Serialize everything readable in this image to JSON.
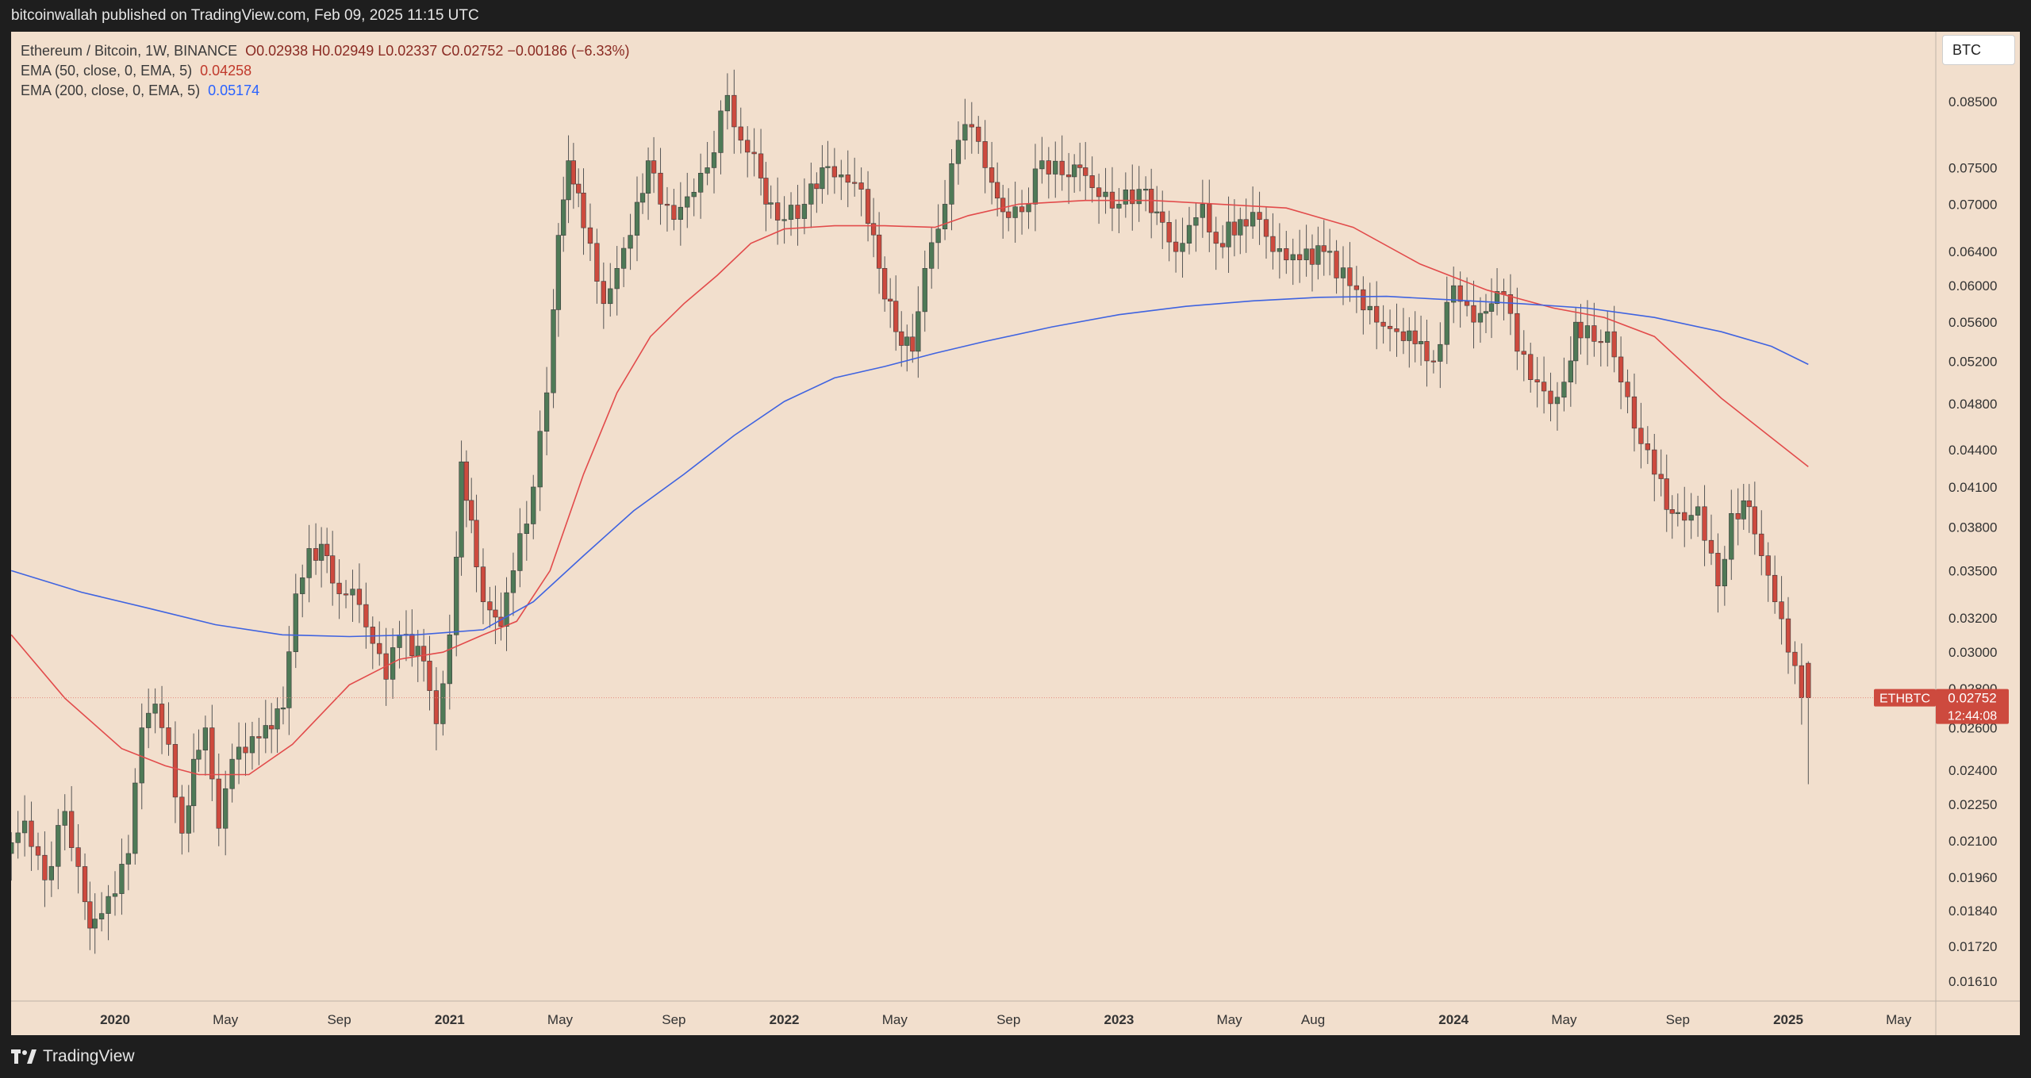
{
  "header": {
    "published": "bitcoinwallah published on TradingView.com, Feb 09, 2025 11:15 UTC"
  },
  "footer": {
    "brand": "TradingView"
  },
  "legend": {
    "line1": "Ethereum / Bitcoin, 1W, BINANCE",
    "ohlc": "O0.02938  H0.02949  L0.02337  C0.02752  −0.00186 (−6.33%)",
    "ema50_label": "EMA (50, close, 0, EMA, 5)",
    "ema50_value": "0.04258",
    "ema200_label": "EMA (200, close, 0, EMA, 5)",
    "ema200_value": "0.05174"
  },
  "currency": "BTC",
  "price_tag": {
    "symbol": "ETHBTC",
    "price": "0.02752",
    "countdown": "12:44:08"
  },
  "colors": {
    "up": "#4f7a57",
    "down": "#cd4a3e",
    "ema50": "#e24b4b",
    "ema200": "#3f63e0",
    "background": "#f2dfcd"
  },
  "chart_data": {
    "type": "candlestick",
    "symbol": "ETHBTC",
    "interval": "1W",
    "scale": "log",
    "y_ticks": [
      "0.01610",
      "0.01720",
      "0.01840",
      "0.01960",
      "0.02100",
      "0.02250",
      "0.02400",
      "0.02600",
      "0.02800",
      "0.03000",
      "0.03200",
      "0.03500",
      "0.03800",
      "0.04100",
      "0.04400",
      "0.04800",
      "0.05200",
      "0.05600",
      "0.06000",
      "0.06400",
      "0.07000",
      "0.07500",
      "0.08500"
    ],
    "x_ticks": [
      {
        "label": "2020",
        "t": 2020.0,
        "bold": true
      },
      {
        "label": "May",
        "t": 2020.33,
        "bold": false
      },
      {
        "label": "Sep",
        "t": 2020.67,
        "bold": false
      },
      {
        "label": "2021",
        "t": 2021.0,
        "bold": true
      },
      {
        "label": "May",
        "t": 2021.33,
        "bold": false
      },
      {
        "label": "Sep",
        "t": 2021.67,
        "bold": false
      },
      {
        "label": "2022",
        "t": 2022.0,
        "bold": true
      },
      {
        "label": "May",
        "t": 2022.33,
        "bold": false
      },
      {
        "label": "Sep",
        "t": 2022.67,
        "bold": false
      },
      {
        "label": "2023",
        "t": 2023.0,
        "bold": true
      },
      {
        "label": "May",
        "t": 2023.33,
        "bold": false
      },
      {
        "label": "Aug",
        "t": 2023.58,
        "bold": false
      },
      {
        "label": "2024",
        "t": 2024.0,
        "bold": true
      },
      {
        "label": "May",
        "t": 2024.33,
        "bold": false
      },
      {
        "label": "Sep",
        "t": 2024.67,
        "bold": false
      },
      {
        "label": "2025",
        "t": 2025.0,
        "bold": true
      },
      {
        "label": "May",
        "t": 2025.33,
        "bold": false
      }
    ],
    "closes": [
      [
        2019.69,
        0.0205
      ],
      [
        2019.75,
        0.0218
      ],
      [
        2019.81,
        0.0195
      ],
      [
        2019.87,
        0.0222
      ],
      [
        2019.91,
        0.02
      ],
      [
        2019.94,
        0.0178
      ],
      [
        2019.98,
        0.0183
      ],
      [
        2020.02,
        0.019
      ],
      [
        2020.06,
        0.0205
      ],
      [
        2020.1,
        0.026
      ],
      [
        2020.14,
        0.0272
      ],
      [
        2020.18,
        0.0252
      ],
      [
        2020.22,
        0.0213
      ],
      [
        2020.25,
        0.0245
      ],
      [
        2020.29,
        0.026
      ],
      [
        2020.33,
        0.0215
      ],
      [
        2020.37,
        0.0245
      ],
      [
        2020.41,
        0.0248
      ],
      [
        2020.45,
        0.0255
      ],
      [
        2020.52,
        0.027
      ],
      [
        2020.56,
        0.0335
      ],
      [
        2020.6,
        0.0365
      ],
      [
        2020.65,
        0.036
      ],
      [
        2020.69,
        0.0335
      ],
      [
        2020.73,
        0.0338
      ],
      [
        2020.79,
        0.0305
      ],
      [
        2020.83,
        0.0285
      ],
      [
        2020.87,
        0.031
      ],
      [
        2020.94,
        0.0295
      ],
      [
        2020.98,
        0.0262
      ],
      [
        2021.02,
        0.031
      ],
      [
        2021.05,
        0.043
      ],
      [
        2021.08,
        0.0385
      ],
      [
        2021.12,
        0.033
      ],
      [
        2021.17,
        0.0315
      ],
      [
        2021.21,
        0.035
      ],
      [
        2021.27,
        0.041
      ],
      [
        2021.31,
        0.049
      ],
      [
        2021.34,
        0.066
      ],
      [
        2021.37,
        0.076
      ],
      [
        2021.4,
        0.0715
      ],
      [
        2021.44,
        0.065
      ],
      [
        2021.48,
        0.058
      ],
      [
        2021.52,
        0.062
      ],
      [
        2021.56,
        0.066
      ],
      [
        2021.61,
        0.076
      ],
      [
        2021.65,
        0.07
      ],
      [
        2021.69,
        0.068
      ],
      [
        2021.73,
        0.071
      ],
      [
        2021.79,
        0.075
      ],
      [
        2021.85,
        0.086
      ],
      [
        2021.89,
        0.079
      ],
      [
        2021.93,
        0.077
      ],
      [
        2021.96,
        0.07
      ],
      [
        2022.02,
        0.068
      ],
      [
        2022.08,
        0.07
      ],
      [
        2022.13,
        0.075
      ],
      [
        2022.19,
        0.074
      ],
      [
        2022.25,
        0.072
      ],
      [
        2022.3,
        0.062
      ],
      [
        2022.35,
        0.055
      ],
      [
        2022.4,
        0.053
      ],
      [
        2022.44,
        0.062
      ],
      [
        2022.5,
        0.07
      ],
      [
        2022.54,
        0.079
      ],
      [
        2022.58,
        0.081
      ],
      [
        2022.62,
        0.075
      ],
      [
        2022.67,
        0.069
      ],
      [
        2022.73,
        0.069
      ],
      [
        2022.79,
        0.076
      ],
      [
        2022.85,
        0.074
      ],
      [
        2022.9,
        0.075
      ],
      [
        2022.96,
        0.071
      ],
      [
        2023.02,
        0.07
      ],
      [
        2023.08,
        0.072
      ],
      [
        2023.13,
        0.069
      ],
      [
        2023.19,
        0.064
      ],
      [
        2023.27,
        0.07
      ],
      [
        2023.31,
        0.065
      ],
      [
        2023.38,
        0.068
      ],
      [
        2023.44,
        0.068
      ],
      [
        2023.48,
        0.064
      ],
      [
        2023.56,
        0.063
      ],
      [
        2023.63,
        0.064
      ],
      [
        2023.71,
        0.06
      ],
      [
        2023.79,
        0.056
      ],
      [
        2023.85,
        0.055
      ],
      [
        2023.92,
        0.054
      ],
      [
        2023.96,
        0.052
      ],
      [
        2024.02,
        0.06
      ],
      [
        2024.08,
        0.056
      ],
      [
        2024.13,
        0.058
      ],
      [
        2024.17,
        0.059
      ],
      [
        2024.21,
        0.053
      ],
      [
        2024.27,
        0.05
      ],
      [
        2024.31,
        0.048
      ],
      [
        2024.35,
        0.05
      ],
      [
        2024.38,
        0.056
      ],
      [
        2024.44,
        0.054
      ],
      [
        2024.48,
        0.055
      ],
      [
        2024.52,
        0.05
      ],
      [
        2024.58,
        0.0445
      ],
      [
        2024.62,
        0.042
      ],
      [
        2024.67,
        0.039
      ],
      [
        2024.71,
        0.0385
      ],
      [
        2024.75,
        0.0395
      ],
      [
        2024.81,
        0.034
      ],
      [
        2024.85,
        0.039
      ],
      [
        2024.9,
        0.0395
      ],
      [
        2024.94,
        0.036
      ],
      [
        2024.98,
        0.033
      ],
      [
        2025.02,
        0.03
      ],
      [
        2025.06,
        0.02752
      ]
    ],
    "ema50": [
      [
        2019.69,
        0.031
      ],
      [
        2019.85,
        0.0275
      ],
      [
        2020.02,
        0.025
      ],
      [
        2020.15,
        0.0242
      ],
      [
        2020.25,
        0.0238
      ],
      [
        2020.4,
        0.0238
      ],
      [
        2020.53,
        0.0252
      ],
      [
        2020.7,
        0.0282
      ],
      [
        2020.85,
        0.0296
      ],
      [
        2020.98,
        0.03
      ],
      [
        2021.1,
        0.031
      ],
      [
        2021.2,
        0.0318
      ],
      [
        2021.3,
        0.035
      ],
      [
        2021.4,
        0.042
      ],
      [
        2021.5,
        0.049
      ],
      [
        2021.6,
        0.0545
      ],
      [
        2021.7,
        0.058
      ],
      [
        2021.8,
        0.0612
      ],
      [
        2021.9,
        0.065
      ],
      [
        2022.0,
        0.0668
      ],
      [
        2022.15,
        0.0672
      ],
      [
        2022.3,
        0.0672
      ],
      [
        2022.45,
        0.067
      ],
      [
        2022.55,
        0.0685
      ],
      [
        2022.7,
        0.07
      ],
      [
        2022.9,
        0.0705
      ],
      [
        2023.1,
        0.0705
      ],
      [
        2023.3,
        0.07
      ],
      [
        2023.5,
        0.0695
      ],
      [
        2023.7,
        0.067
      ],
      [
        2023.9,
        0.0625
      ],
      [
        2024.1,
        0.0595
      ],
      [
        2024.3,
        0.0575
      ],
      [
        2024.45,
        0.0565
      ],
      [
        2024.6,
        0.0545
      ],
      [
        2024.8,
        0.0485
      ],
      [
        2024.95,
        0.045
      ],
      [
        2025.06,
        0.0426
      ]
    ],
    "ema200": [
      [
        2019.69,
        0.035
      ],
      [
        2019.9,
        0.0336
      ],
      [
        2020.1,
        0.0326
      ],
      [
        2020.3,
        0.0316
      ],
      [
        2020.5,
        0.031
      ],
      [
        2020.7,
        0.0309
      ],
      [
        2020.9,
        0.031
      ],
      [
        2021.1,
        0.0313
      ],
      [
        2021.25,
        0.033
      ],
      [
        2021.4,
        0.036
      ],
      [
        2021.55,
        0.0392
      ],
      [
        2021.7,
        0.042
      ],
      [
        2021.85,
        0.0452
      ],
      [
        2022.0,
        0.0482
      ],
      [
        2022.15,
        0.0504
      ],
      [
        2022.3,
        0.0515
      ],
      [
        2022.45,
        0.0528
      ],
      [
        2022.6,
        0.054
      ],
      [
        2022.8,
        0.0555
      ],
      [
        2023.0,
        0.0568
      ],
      [
        2023.2,
        0.0577
      ],
      [
        2023.4,
        0.0583
      ],
      [
        2023.6,
        0.0587
      ],
      [
        2023.8,
        0.0588
      ],
      [
        2024.0,
        0.0584
      ],
      [
        2024.2,
        0.058
      ],
      [
        2024.4,
        0.0575
      ],
      [
        2024.6,
        0.0565
      ],
      [
        2024.8,
        0.055
      ],
      [
        2024.95,
        0.0535
      ],
      [
        2025.06,
        0.0517
      ]
    ]
  }
}
